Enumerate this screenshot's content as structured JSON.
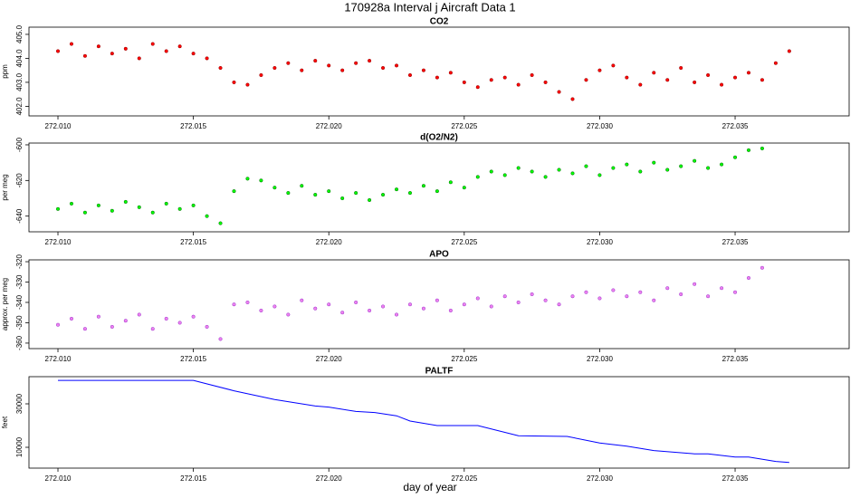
{
  "title": "170928a   Interval j Aircraft Data 1",
  "xlabel": "day of year",
  "chart_data": [
    {
      "type": "scatter",
      "title": "CO2",
      "ylabel": "ppm",
      "color": "#ff0000",
      "stroke": "#8b0000",
      "x": [
        272.01,
        272.0105,
        272.011,
        272.0115,
        272.012,
        272.0125,
        272.013,
        272.0135,
        272.014,
        272.0145,
        272.015,
        272.0155,
        272.016,
        272.0165,
        272.017,
        272.0175,
        272.018,
        272.0185,
        272.019,
        272.0195,
        272.02,
        272.0205,
        272.021,
        272.0215,
        272.022,
        272.0225,
        272.023,
        272.0235,
        272.024,
        272.0245,
        272.025,
        272.0255,
        272.026,
        272.0265,
        272.027,
        272.0275,
        272.028,
        272.0285,
        272.029,
        272.0295,
        272.03,
        272.0305,
        272.031,
        272.0315,
        272.032,
        272.0325,
        272.033,
        272.0335,
        272.034,
        272.0345,
        272.035,
        272.0355,
        272.036,
        272.0365,
        272.037
      ],
      "values": [
        404.3,
        404.6,
        404.1,
        404.5,
        404.2,
        404.4,
        404.0,
        404.6,
        404.3,
        404.5,
        404.2,
        404.0,
        403.6,
        403.0,
        402.9,
        403.3,
        403.6,
        403.8,
        403.5,
        403.9,
        403.7,
        403.5,
        403.8,
        403.9,
        403.6,
        403.7,
        403.3,
        403.5,
        403.2,
        403.4,
        403.0,
        402.8,
        403.1,
        403.2,
        402.9,
        403.3,
        403.0,
        402.6,
        402.3,
        403.1,
        403.5,
        403.7,
        403.2,
        402.9,
        403.4,
        403.1,
        403.6,
        403.0,
        403.3,
        402.9,
        403.2,
        403.4,
        403.1,
        403.8,
        404.3
      ],
      "xlim": [
        272.00893,
        272.03921
      ],
      "ylim": [
        401.6,
        405.3
      ],
      "xticks": [
        {
          "value": 272.01,
          "label": "272.010"
        },
        {
          "value": 272.015,
          "label": "272.015"
        },
        {
          "value": 272.02,
          "label": "272.020"
        },
        {
          "value": 272.025,
          "label": "272.025"
        },
        {
          "value": 272.03,
          "label": "272.030"
        },
        {
          "value": 272.035,
          "label": "272.035"
        }
      ],
      "yticks": [
        {
          "value": 402,
          "label": "402.0"
        },
        {
          "value": 403,
          "label": "403.0"
        },
        {
          "value": 404,
          "label": "404.0"
        },
        {
          "value": 405,
          "label": "405.0"
        }
      ]
    },
    {
      "type": "scatter",
      "title": "d(O2/N2)",
      "ylabel": "per meg",
      "color": "#00ff00",
      "stroke": "#006400",
      "x": [
        272.01,
        272.0105,
        272.011,
        272.0115,
        272.012,
        272.0125,
        272.013,
        272.0135,
        272.014,
        272.0145,
        272.015,
        272.0155,
        272.016,
        272.0165,
        272.017,
        272.0175,
        272.018,
        272.0185,
        272.019,
        272.0195,
        272.02,
        272.0205,
        272.021,
        272.0215,
        272.022,
        272.0225,
        272.023,
        272.0235,
        272.024,
        272.0245,
        272.025,
        272.0255,
        272.026,
        272.0265,
        272.027,
        272.0275,
        272.028,
        272.0285,
        272.029,
        272.0295,
        272.03,
        272.0305,
        272.031,
        272.0315,
        272.032,
        272.0325,
        272.033,
        272.0335,
        272.034,
        272.0345,
        272.035,
        272.0355,
        272.036
      ],
      "values": [
        -636,
        -633,
        -638,
        -634,
        -637,
        -632,
        -635,
        -638,
        -633,
        -636,
        -634,
        -640,
        -644,
        -626,
        -619,
        -620,
        -624,
        -627,
        -623,
        -628,
        -626,
        -630,
        -627,
        -631,
        -628,
        -625,
        -627,
        -623,
        -626,
        -621,
        -624,
        -618,
        -615,
        -617,
        -613,
        -615,
        -618,
        -614,
        -616,
        -612,
        -617,
        -613,
        -611,
        -615,
        -610,
        -614,
        -612,
        -609,
        -613,
        -611,
        -607,
        -603,
        -602
      ],
      "xlim": [
        272.00893,
        272.03921
      ],
      "ylim": [
        -648.8,
        -599
      ],
      "xticks": [
        {
          "value": 272.01,
          "label": "272.010"
        },
        {
          "value": 272.015,
          "label": "272.015"
        },
        {
          "value": 272.02,
          "label": "272.020"
        },
        {
          "value": 272.025,
          "label": "272.025"
        },
        {
          "value": 272.03,
          "label": "272.030"
        },
        {
          "value": 272.035,
          "label": "272.035"
        }
      ],
      "yticks": [
        -640,
        -620,
        -600
      ]
    },
    {
      "type": "scatter",
      "title": "APO",
      "ylabel": "approx. per meg",
      "color": "#ee82ee",
      "stroke": "#9932cc",
      "x": [
        272.01,
        272.0105,
        272.011,
        272.0115,
        272.012,
        272.0125,
        272.013,
        272.0135,
        272.014,
        272.0145,
        272.015,
        272.0155,
        272.016,
        272.0165,
        272.017,
        272.0175,
        272.018,
        272.0185,
        272.019,
        272.0195,
        272.02,
        272.0205,
        272.021,
        272.0215,
        272.022,
        272.0225,
        272.023,
        272.0235,
        272.024,
        272.0245,
        272.025,
        272.0255,
        272.026,
        272.0265,
        272.027,
        272.0275,
        272.028,
        272.0285,
        272.029,
        272.0295,
        272.03,
        272.0305,
        272.031,
        272.0315,
        272.032,
        272.0325,
        272.033,
        272.0335,
        272.034,
        272.0345,
        272.035,
        272.0355,
        272.036
      ],
      "values": [
        -351,
        -348,
        -353,
        -347,
        -352,
        -349,
        -346,
        -353,
        -348,
        -350,
        -347,
        -352,
        -358,
        -341,
        -340,
        -344,
        -342,
        -346,
        -339,
        -343,
        -341,
        -345,
        -340,
        -344,
        -342,
        -346,
        -341,
        -343,
        -339,
        -344,
        -341,
        -338,
        -342,
        -337,
        -340,
        -336,
        -339,
        -341,
        -337,
        -335,
        -338,
        -334,
        -337,
        -335,
        -339,
        -333,
        -336,
        -331,
        -337,
        -333,
        -335,
        -328,
        -323
      ],
      "xlim": [
        272.00893,
        272.03921
      ],
      "ylim": [
        -362.7,
        -319.1
      ],
      "xticks": [
        {
          "value": 272.01,
          "label": "272.010"
        },
        {
          "value": 272.015,
          "label": "272.015"
        },
        {
          "value": 272.02,
          "label": "272.020"
        },
        {
          "value": 272.025,
          "label": "272.025"
        },
        {
          "value": 272.03,
          "label": "272.030"
        },
        {
          "value": 272.035,
          "label": "272.035"
        }
      ],
      "yticks": [
        -360,
        -350,
        -340,
        -330,
        -320
      ]
    },
    {
      "type": "line",
      "title": "PALTF",
      "ylabel": "feet",
      "color": "#0000ff",
      "x": [
        272.01,
        272.015,
        272.0165,
        272.018,
        272.0195,
        272.02,
        272.021,
        272.0217,
        272.0225,
        272.023,
        272.024,
        272.0255,
        272.027,
        272.0288,
        272.03,
        272.031,
        272.032,
        272.0335,
        272.034,
        272.035,
        272.0355,
        272.0365,
        272.037
      ],
      "values": [
        40800,
        40800,
        36000,
        32000,
        29000,
        28500,
        26500,
        26000,
        24500,
        22100,
        20000,
        20000,
        15300,
        15000,
        12000,
        10500,
        8500,
        7000,
        7000,
        5500,
        5500,
        3500,
        3000
      ],
      "xlim": [
        272.00893,
        272.03921
      ],
      "ylim": [
        420,
        42500
      ],
      "xticks": [
        {
          "value": 272.01,
          "label": "272.010"
        },
        {
          "value": 272.015,
          "label": "272.015"
        },
        {
          "value": 272.02,
          "label": "272.020"
        },
        {
          "value": 272.025,
          "label": "272.025"
        },
        {
          "value": 272.03,
          "label": "272.030"
        },
        {
          "value": 272.035,
          "label": "272.035"
        }
      ],
      "yticks": [
        10000,
        30000
      ]
    }
  ]
}
